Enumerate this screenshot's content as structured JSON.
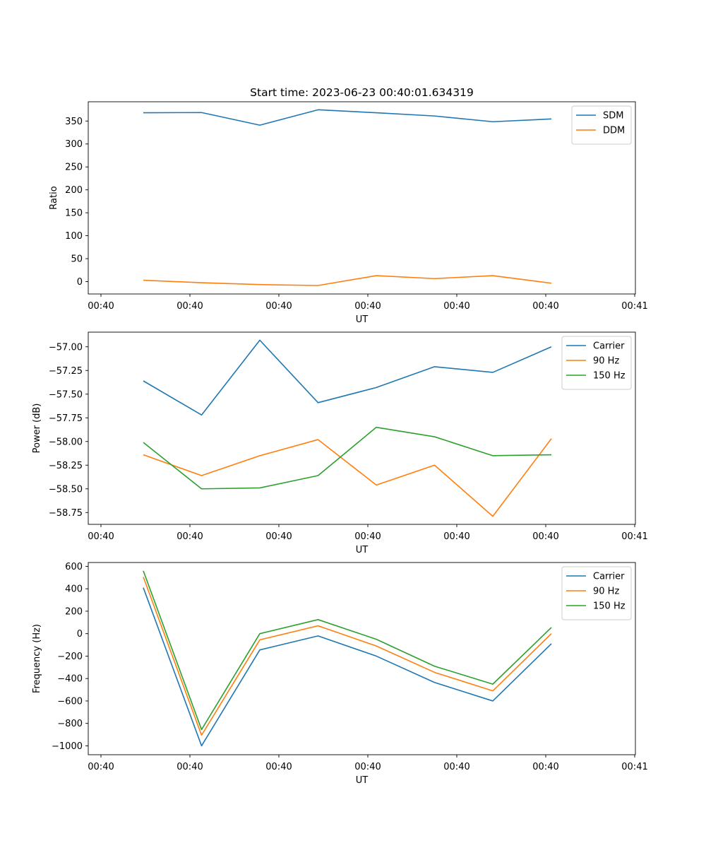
{
  "figure_title": "Start time: 2023-06-23 00:40:01.634319",
  "colors": {
    "blue": "#1f77b4",
    "orange": "#ff7f0e",
    "green": "#2ca02c"
  },
  "chart_data": [
    {
      "type": "line",
      "title": "Start time: 2023-06-23 00:40:01.634319",
      "xlabel": "UT",
      "ylabel": "Ratio",
      "x_tick_labels": [
        "00:40",
        "00:40",
        "00:40",
        "00:40",
        "00:40",
        "00:40",
        "00:40",
        "00:41"
      ],
      "ylim": [
        -27,
        392
      ],
      "y_ticks": [
        0,
        50,
        100,
        150,
        200,
        250,
        300,
        350
      ],
      "y_tick_labels": [
        "0",
        "50",
        "100",
        "150",
        "200",
        "250",
        "300",
        "350"
      ],
      "legend_position": "upper right",
      "grid": false,
      "series": [
        {
          "name": "SDM",
          "color": "#1f77b4",
          "values": [
            368,
            368.5,
            341,
            374.5,
            368,
            361,
            348.5,
            354.5
          ]
        },
        {
          "name": "DDM",
          "color": "#ff7f0e",
          "values": [
            3,
            -2.5,
            -6.5,
            -8.5,
            13,
            6.5,
            13,
            -3.5
          ]
        }
      ]
    },
    {
      "type": "line",
      "xlabel": "UT",
      "ylabel": "Power (dB)",
      "x_tick_labels": [
        "00:40",
        "00:40",
        "00:40",
        "00:40",
        "00:40",
        "00:40",
        "00:40",
        "00:41"
      ],
      "ylim": [
        -58.875,
        -56.845
      ],
      "y_ticks": [
        -58.75,
        -58.5,
        -58.25,
        -58.0,
        -57.75,
        -57.5,
        -57.25,
        -57.0
      ],
      "y_tick_labels": [
        "−58.75",
        "−58.50",
        "−58.25",
        "−58.00",
        "−57.75",
        "−57.50",
        "−57.25",
        "−57.00"
      ],
      "legend_position": "upper right",
      "grid": false,
      "series": [
        {
          "name": "Carrier",
          "color": "#1f77b4",
          "values": [
            -57.36,
            -57.72,
            -56.93,
            -57.59,
            -57.43,
            -57.21,
            -57.27,
            -57.0
          ]
        },
        {
          "name": "90 Hz",
          "color": "#ff7f0e",
          "values": [
            -58.14,
            -58.36,
            -58.15,
            -57.98,
            -58.46,
            -58.25,
            -58.79,
            -57.97
          ]
        },
        {
          "name": "150 Hz",
          "color": "#2ca02c",
          "values": [
            -58.01,
            -58.5,
            -58.49,
            -58.36,
            -57.85,
            -57.95,
            -58.15,
            -58.14
          ]
        }
      ]
    },
    {
      "type": "line",
      "xlabel": "UT",
      "ylabel": "Frequency (Hz)",
      "x_tick_labels": [
        "00:40",
        "00:40",
        "00:40",
        "00:40",
        "00:40",
        "00:40",
        "00:40",
        "00:41"
      ],
      "ylim": [
        -1079,
        634
      ],
      "y_ticks": [
        -1000,
        -800,
        -600,
        -400,
        -200,
        0,
        200,
        400,
        600
      ],
      "y_tick_labels": [
        "−1000",
        "−800",
        "−600",
        "−400",
        "−200",
        "0",
        "200",
        "400",
        "600"
      ],
      "legend_position": "upper right",
      "grid": false,
      "series": [
        {
          "name": "Carrier",
          "color": "#1f77b4",
          "values": [
            410,
            -1000,
            -145,
            -20,
            -200,
            -435,
            -600,
            -90
          ]
        },
        {
          "name": "90 Hz",
          "color": "#ff7f0e",
          "values": [
            505,
            -905,
            -55,
            70,
            -110,
            -345,
            -510,
            0
          ]
        },
        {
          "name": "150 Hz",
          "color": "#2ca02c",
          "values": [
            560,
            -855,
            0,
            125,
            -50,
            -290,
            -450,
            55
          ]
        }
      ]
    }
  ]
}
